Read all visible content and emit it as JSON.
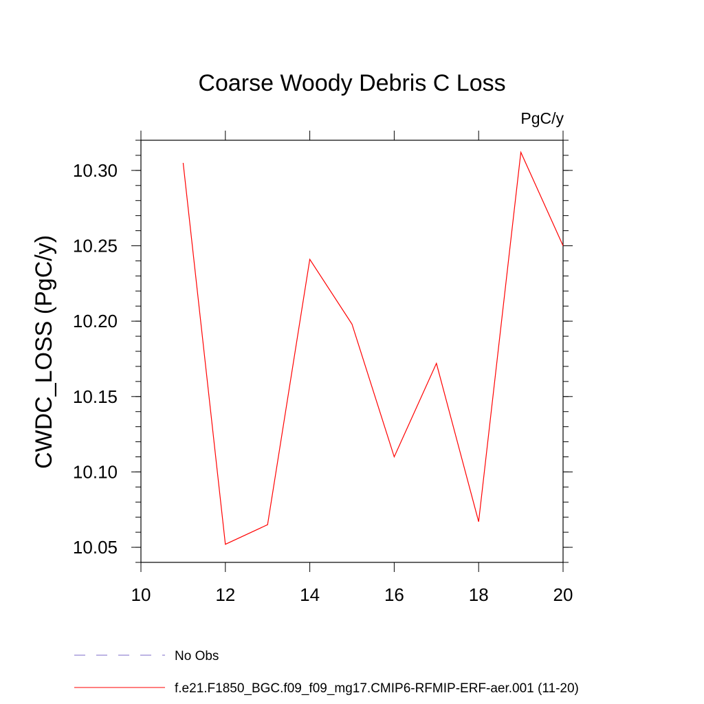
{
  "chart_data": {
    "type": "line",
    "title": "Coarse Woody Debris C Loss",
    "units_label": "PgC/y",
    "ylabel": "CWDC_LOSS  (PgC/y)",
    "xlabel": "",
    "xlim": [
      10,
      20
    ],
    "ylim": [
      10.04,
      10.32
    ],
    "x_ticks": [
      10,
      12,
      14,
      16,
      18,
      20
    ],
    "x_tick_labels": [
      "10",
      "12",
      "14",
      "16",
      "18",
      "20"
    ],
    "y_ticks": [
      10.05,
      10.1,
      10.15,
      10.2,
      10.25,
      10.3
    ],
    "y_tick_labels": [
      "10.05",
      "10.10",
      "10.15",
      "10.20",
      "10.25",
      "10.30"
    ],
    "grid": false,
    "series": [
      {
        "name": "f.e21.F1850_BGC.f09_f09_mg17.CMIP6-RFMIP-ERF-aer.001 (11-20)",
        "color": "#ff0000",
        "x": [
          11,
          12,
          13,
          14,
          15,
          16,
          17,
          18,
          19,
          20
        ],
        "values": [
          10.305,
          10.052,
          10.065,
          10.241,
          10.198,
          10.11,
          10.172,
          10.067,
          10.312,
          10.25
        ]
      }
    ],
    "legend": [
      {
        "label": "No Obs",
        "color": "#7b68c8",
        "style": "dashed"
      },
      {
        "label": "f.e21.F1850_BGC.f09_f09_mg17.CMIP6-RFMIP-ERF-aer.001 (11-20)",
        "color": "#ff0000",
        "style": "solid"
      }
    ],
    "legend_placement": "bottom-left"
  }
}
